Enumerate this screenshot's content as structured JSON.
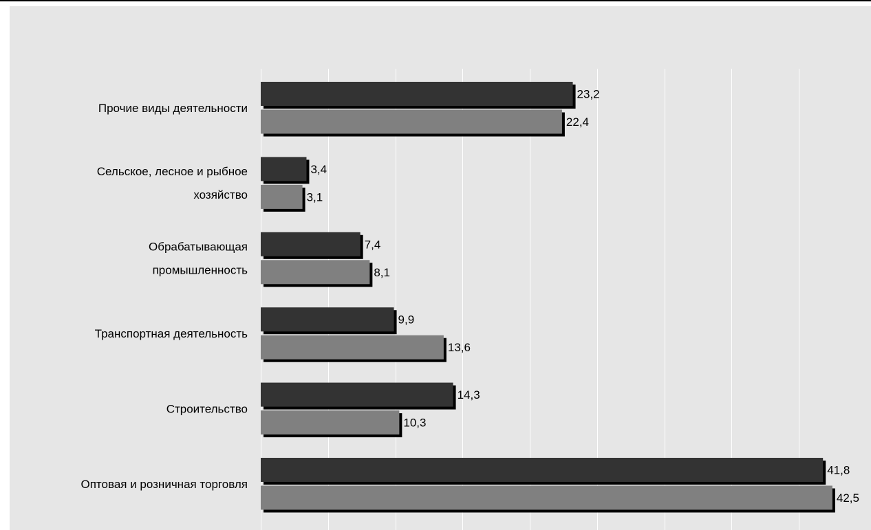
{
  "colors": {
    "background": "#e6e6e6",
    "gridline": "#ffffff",
    "series_dark": "#333333",
    "series_light": "#808080",
    "shadow": "#000000"
  },
  "chart_data": {
    "type": "bar",
    "orientation": "horizontal",
    "title": "",
    "xlabel": "",
    "ylabel": "",
    "xlim": [
      0,
      44
    ],
    "gridlines": "vertical",
    "legend": "none",
    "categories": [
      "Прочие виды деятельности",
      "Сельское, лесное и рыбное хозяйство",
      "Обрабатывающая промышленность",
      "Транспортная деятельность",
      "Строительство",
      "Оптовая и розничная торговля"
    ],
    "category_lines": [
      [
        "Прочие виды деятельности"
      ],
      [
        "Сельское, лесное и рыбное",
        "хозяйство"
      ],
      [
        "Обрабатывающая",
        "промышленность"
      ],
      [
        "Транспортная деятельность"
      ],
      [
        "Строительство"
      ],
      [
        "Оптовая и розничная торговля"
      ]
    ],
    "series": [
      {
        "values": [
          23.2,
          3.4,
          7.4,
          9.9,
          14.3,
          41.8
        ],
        "labels": [
          "23,2",
          "3,4",
          "7,4",
          "9,9",
          "14,3",
          "41,8"
        ]
      },
      {
        "values": [
          22.4,
          3.1,
          8.1,
          13.6,
          10.3,
          42.5
        ],
        "labels": [
          "22,4",
          "3,1",
          "8,1",
          "13,6",
          "10,3",
          "42,5"
        ]
      }
    ]
  }
}
